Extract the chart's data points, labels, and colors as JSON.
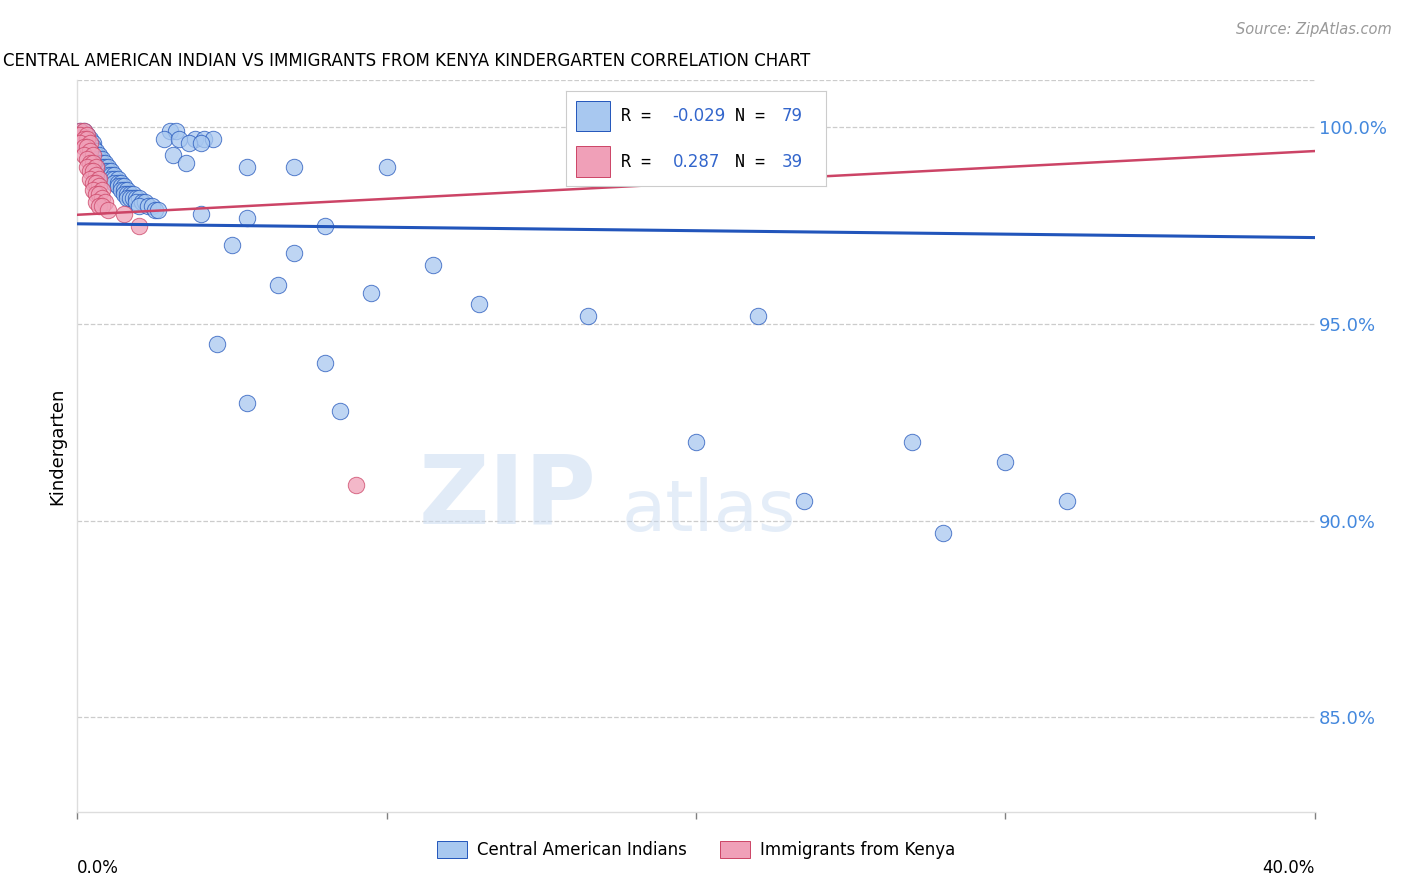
{
  "title": "CENTRAL AMERICAN INDIAN VS IMMIGRANTS FROM KENYA KINDERGARTEN CORRELATION CHART",
  "source": "Source: ZipAtlas.com",
  "ylabel": "Kindergarten",
  "ytick_labels": [
    "100.0%",
    "95.0%",
    "90.0%",
    "85.0%"
  ],
  "ytick_values": [
    1.0,
    0.95,
    0.9,
    0.85
  ],
  "xlim": [
    0.0,
    0.4
  ],
  "ylim": [
    0.826,
    1.012
  ],
  "legend_blue_label": "Central American Indians",
  "legend_pink_label": "Immigrants from Kenya",
  "watermark_zip": "ZIP",
  "watermark_atlas": "atlas",
  "blue_color": "#A8C8F0",
  "pink_color": "#F0A0B8",
  "blue_line_color": "#2255BB",
  "pink_line_color": "#CC4466",
  "blue_scatter": [
    [
      0.001,
      0.999
    ],
    [
      0.002,
      0.999
    ],
    [
      0.001,
      0.998
    ],
    [
      0.003,
      0.998
    ],
    [
      0.002,
      0.997
    ],
    [
      0.003,
      0.997
    ],
    [
      0.004,
      0.997
    ],
    [
      0.002,
      0.996
    ],
    [
      0.005,
      0.996
    ],
    [
      0.003,
      0.996
    ],
    [
      0.004,
      0.995
    ],
    [
      0.003,
      0.995
    ],
    [
      0.005,
      0.995
    ],
    [
      0.004,
      0.994
    ],
    [
      0.006,
      0.994
    ],
    [
      0.005,
      0.993
    ],
    [
      0.006,
      0.993
    ],
    [
      0.007,
      0.993
    ],
    [
      0.006,
      0.992
    ],
    [
      0.007,
      0.992
    ],
    [
      0.008,
      0.992
    ],
    [
      0.007,
      0.991
    ],
    [
      0.008,
      0.991
    ],
    [
      0.009,
      0.991
    ],
    [
      0.008,
      0.99
    ],
    [
      0.009,
      0.99
    ],
    [
      0.01,
      0.99
    ],
    [
      0.009,
      0.989
    ],
    [
      0.01,
      0.989
    ],
    [
      0.011,
      0.989
    ],
    [
      0.01,
      0.988
    ],
    [
      0.011,
      0.988
    ],
    [
      0.012,
      0.988
    ],
    [
      0.011,
      0.987
    ],
    [
      0.012,
      0.987
    ],
    [
      0.013,
      0.987
    ],
    [
      0.012,
      0.986
    ],
    [
      0.013,
      0.986
    ],
    [
      0.014,
      0.986
    ],
    [
      0.013,
      0.985
    ],
    [
      0.014,
      0.985
    ],
    [
      0.015,
      0.985
    ],
    [
      0.014,
      0.984
    ],
    [
      0.015,
      0.984
    ],
    [
      0.016,
      0.984
    ],
    [
      0.015,
      0.983
    ],
    [
      0.016,
      0.983
    ],
    [
      0.017,
      0.983
    ],
    [
      0.018,
      0.983
    ],
    [
      0.016,
      0.982
    ],
    [
      0.017,
      0.982
    ],
    [
      0.018,
      0.982
    ],
    [
      0.019,
      0.982
    ],
    [
      0.02,
      0.982
    ],
    [
      0.019,
      0.981
    ],
    [
      0.021,
      0.981
    ],
    [
      0.022,
      0.981
    ],
    [
      0.02,
      0.98
    ],
    [
      0.023,
      0.98
    ],
    [
      0.024,
      0.98
    ],
    [
      0.025,
      0.979
    ],
    [
      0.026,
      0.979
    ],
    [
      0.03,
      0.999
    ],
    [
      0.032,
      0.999
    ],
    [
      0.028,
      0.997
    ],
    [
      0.033,
      0.997
    ],
    [
      0.038,
      0.997
    ],
    [
      0.041,
      0.997
    ],
    [
      0.044,
      0.997
    ],
    [
      0.036,
      0.996
    ],
    [
      0.04,
      0.996
    ],
    [
      0.031,
      0.993
    ],
    [
      0.035,
      0.991
    ],
    [
      0.055,
      0.99
    ],
    [
      0.07,
      0.99
    ],
    [
      0.1,
      0.99
    ],
    [
      0.04,
      0.978
    ],
    [
      0.055,
      0.977
    ],
    [
      0.08,
      0.975
    ],
    [
      0.05,
      0.97
    ],
    [
      0.07,
      0.968
    ],
    [
      0.115,
      0.965
    ],
    [
      0.065,
      0.96
    ],
    [
      0.095,
      0.958
    ],
    [
      0.13,
      0.955
    ],
    [
      0.165,
      0.952
    ],
    [
      0.22,
      0.952
    ],
    [
      0.045,
      0.945
    ],
    [
      0.08,
      0.94
    ],
    [
      0.055,
      0.93
    ],
    [
      0.085,
      0.928
    ],
    [
      0.2,
      0.92
    ],
    [
      0.27,
      0.92
    ],
    [
      0.3,
      0.915
    ],
    [
      0.235,
      0.905
    ],
    [
      0.32,
      0.905
    ],
    [
      0.28,
      0.897
    ]
  ],
  "pink_scatter": [
    [
      0.001,
      0.999
    ],
    [
      0.002,
      0.999
    ],
    [
      0.001,
      0.998
    ],
    [
      0.003,
      0.998
    ],
    [
      0.002,
      0.997
    ],
    [
      0.003,
      0.997
    ],
    [
      0.001,
      0.996
    ],
    [
      0.004,
      0.996
    ],
    [
      0.002,
      0.995
    ],
    [
      0.003,
      0.995
    ],
    [
      0.004,
      0.994
    ],
    [
      0.002,
      0.993
    ],
    [
      0.005,
      0.993
    ],
    [
      0.003,
      0.992
    ],
    [
      0.004,
      0.991
    ],
    [
      0.005,
      0.991
    ],
    [
      0.003,
      0.99
    ],
    [
      0.006,
      0.99
    ],
    [
      0.004,
      0.989
    ],
    [
      0.005,
      0.989
    ],
    [
      0.006,
      0.988
    ],
    [
      0.004,
      0.987
    ],
    [
      0.007,
      0.987
    ],
    [
      0.005,
      0.986
    ],
    [
      0.006,
      0.986
    ],
    [
      0.007,
      0.985
    ],
    [
      0.005,
      0.984
    ],
    [
      0.008,
      0.984
    ],
    [
      0.006,
      0.983
    ],
    [
      0.007,
      0.983
    ],
    [
      0.008,
      0.982
    ],
    [
      0.006,
      0.981
    ],
    [
      0.009,
      0.981
    ],
    [
      0.007,
      0.98
    ],
    [
      0.008,
      0.98
    ],
    [
      0.01,
      0.979
    ],
    [
      0.015,
      0.978
    ],
    [
      0.02,
      0.975
    ],
    [
      0.09,
      0.909
    ]
  ],
  "blue_trend_x": [
    0.0,
    0.4
  ],
  "blue_trend_y": [
    0.9755,
    0.972
  ],
  "pink_trend_x": [
    0.0,
    0.4
  ],
  "pink_trend_y": [
    0.9778,
    0.994
  ]
}
